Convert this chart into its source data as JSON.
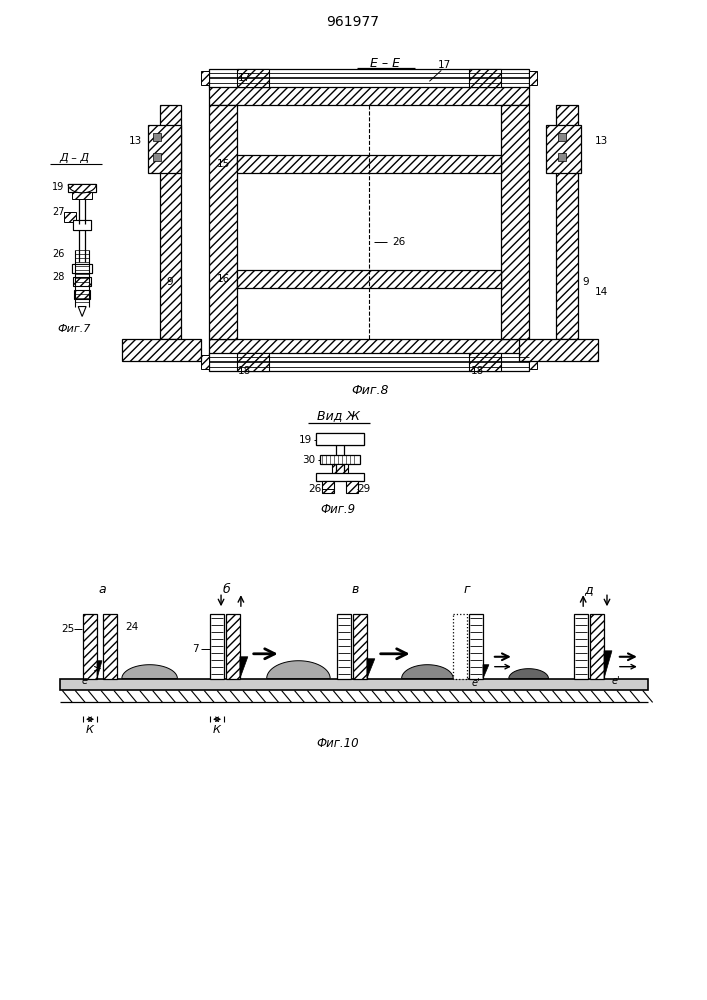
{
  "title_text": "961977",
  "fig7_label": "Фиг.7",
  "fig8_label": "Фиг.8",
  "fig9_label": "Фиг.9",
  "fig10_label": "Фиг.10",
  "section_dd": "Д – Д",
  "section_ee": "Е – Е",
  "view_zh": "Вид Ж",
  "bg_color": "#ffffff",
  "line_color": "#000000"
}
